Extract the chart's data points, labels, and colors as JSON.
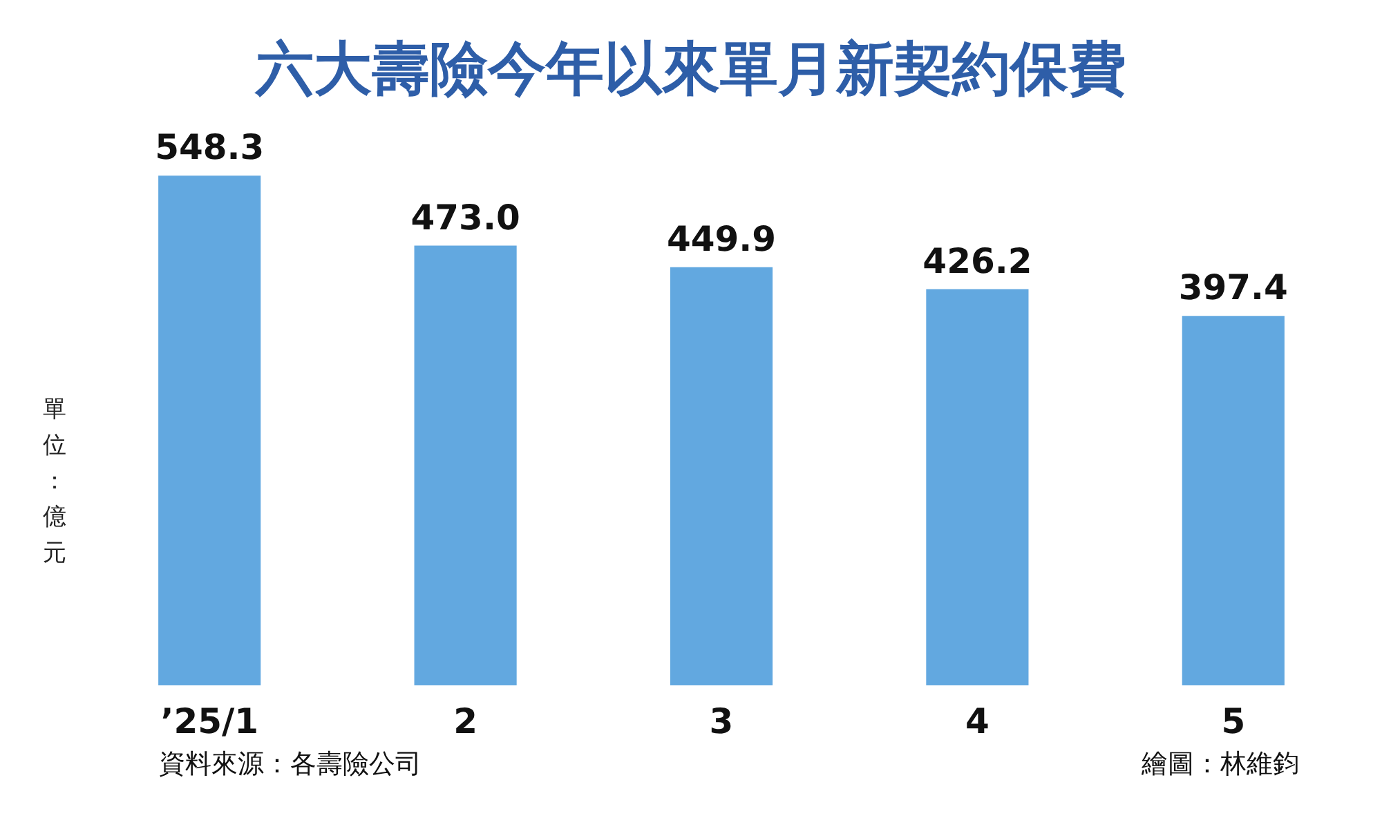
{
  "chart_data": {
    "type": "bar",
    "title": "六大壽險今年以來單月新契約保費",
    "ylabel": "單位：億元",
    "categories": [
      "’25/1",
      "2",
      "3",
      "4",
      "5"
    ],
    "values": [
      548.3,
      473.0,
      449.9,
      426.2,
      397.4
    ],
    "value_labels": [
      "548.3",
      "473.0",
      "449.9",
      "426.2",
      "397.4"
    ],
    "color": "#62a8e0",
    "tick_labels": "x",
    "grid": false,
    "annotations": [
      "資料來源：各壽險公司",
      "繪圖：林維鈞"
    ]
  }
}
